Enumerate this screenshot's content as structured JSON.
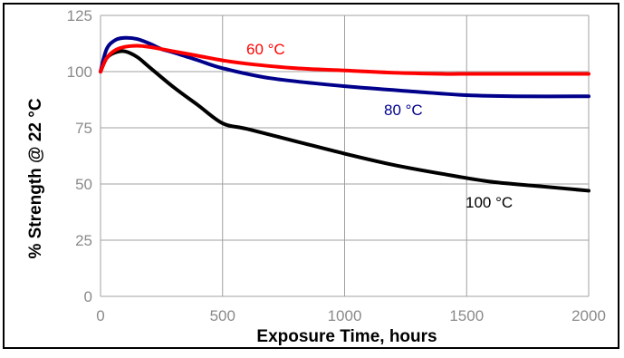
{
  "chart_data": {
    "type": "line",
    "title": "",
    "xlabel": "Exposure Time, hours",
    "ylabel": "% Strength @ 22 °C",
    "xlim": [
      0,
      2000
    ],
    "ylim": [
      0,
      125
    ],
    "x_ticks": [
      0,
      500,
      1000,
      1500,
      2000
    ],
    "y_ticks": [
      0,
      25,
      50,
      75,
      100,
      125
    ],
    "grid": true,
    "legend": "inline labels",
    "series": [
      {
        "name": "60 °C",
        "color": "#ff0000",
        "x": [
          0,
          25,
          60,
          100,
          150,
          200,
          250,
          300,
          400,
          500,
          600,
          800,
          1000,
          1200,
          1400,
          1500,
          1600,
          1800,
          2000
        ],
        "y": [
          100,
          106,
          109.5,
          111,
          111.5,
          111,
          110,
          109,
          107,
          105,
          103.5,
          101.5,
          100.5,
          99.5,
          99,
          99,
          99,
          99,
          99
        ]
      },
      {
        "name": "80 °C",
        "color": "#00008b",
        "x": [
          0,
          25,
          60,
          100,
          150,
          200,
          250,
          300,
          400,
          500,
          700,
          1000,
          1300,
          1500,
          1700,
          2000
        ],
        "y": [
          100,
          110,
          114,
          115,
          114.5,
          112.5,
          110,
          108.5,
          105,
          101.5,
          97,
          93.5,
          91,
          89.5,
          89,
          89
        ]
      },
      {
        "name": "100 °C",
        "color": "#000000",
        "x": [
          0,
          25,
          60,
          100,
          150,
          200,
          300,
          400,
          500,
          600,
          800,
          1000,
          1200,
          1400,
          1600,
          1800,
          2000
        ],
        "y": [
          100,
          106,
          108.5,
          109,
          106.5,
          102,
          93,
          85,
          77,
          74.5,
          69,
          63.5,
          58.5,
          54.5,
          51,
          49,
          47
        ]
      }
    ]
  }
}
